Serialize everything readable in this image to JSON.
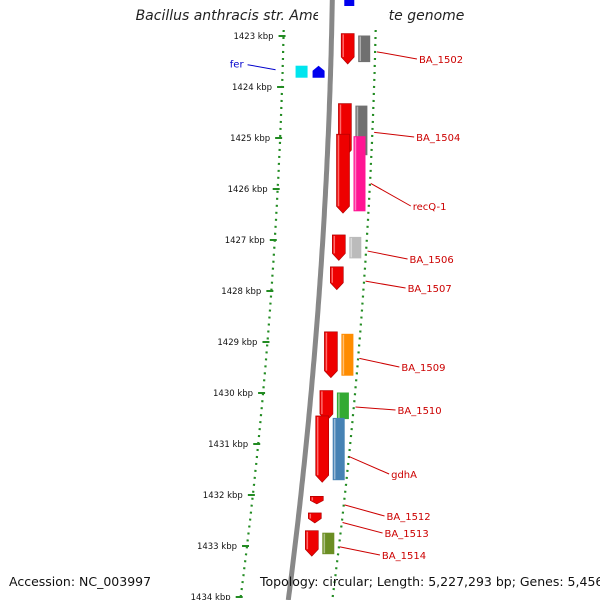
{
  "header": {
    "title": "Bacillus anthracis str. Ames, complete genome"
  },
  "footer": {
    "accession": "Accession: NC_003997",
    "summary": "Topology: circular; Length: 5,227,293 bp; Genes: 5,456"
  },
  "ruler": {
    "ticks": [
      "1423 kbp",
      "1424 kbp",
      "1425 kbp",
      "1426 kbp",
      "1427 kbp",
      "1428 kbp",
      "1429 kbp",
      "1430 kbp",
      "1431 kbp",
      "1432 kbp",
      "1433 kbp",
      "1434 kbp"
    ]
  },
  "colors": {
    "ring": "#888888",
    "dots": "#228b22",
    "gene": "#ee0000",
    "label": "#cc0000",
    "feature": "#0000cc",
    "cog_grey": "#707070",
    "cog_lightgrey": "#bbbbbb",
    "cog_pink": "#ff1493",
    "cog_orange": "#ff8c00",
    "cog_green": "#33aa33",
    "cog_blue": "#4682b4",
    "cog_olive": "#6b8e23",
    "cog_khaki": "#bdb76b",
    "cyan": "#00e5ee",
    "blue": "#0000ee"
  },
  "genes": [
    {
      "name": "BA_1502",
      "kbp": 1423.25,
      "len": 0.6,
      "cog": "cog_grey"
    },
    {
      "name": "BA_1504",
      "kbp": 1424.85,
      "len": 1.05,
      "cog": "cog_grey"
    },
    {
      "name": "recQ-1",
      "kbp": 1425.7,
      "len": 1.55,
      "cog": "cog_pink"
    },
    {
      "name": "BA_1506",
      "kbp": 1427.15,
      "len": 0.5,
      "cog": "cog_lightgrey"
    },
    {
      "name": "BA_1507",
      "kbp": 1427.75,
      "len": 0.45,
      "cog": ""
    },
    {
      "name": "BA_1509",
      "kbp": 1429.25,
      "len": 0.9,
      "cog": "cog_orange"
    },
    {
      "name": "BA_1510",
      "kbp": 1430.25,
      "len": 0.6,
      "cog": "cog_green"
    },
    {
      "name": "gdhA",
      "kbp": 1431.1,
      "len": 1.3,
      "cog": "cog_blue"
    },
    {
      "name": "BA_1512",
      "kbp": 1432.1,
      "len": 0.15,
      "cog": ""
    },
    {
      "name": "BA_1513",
      "kbp": 1432.45,
      "len": 0.2,
      "cog": ""
    },
    {
      "name": "BA_1514",
      "kbp": 1432.95,
      "len": 0.5,
      "cog": "cog_olive"
    }
  ],
  "features": [
    {
      "name": "fer",
      "kbp": 1423.7
    }
  ]
}
